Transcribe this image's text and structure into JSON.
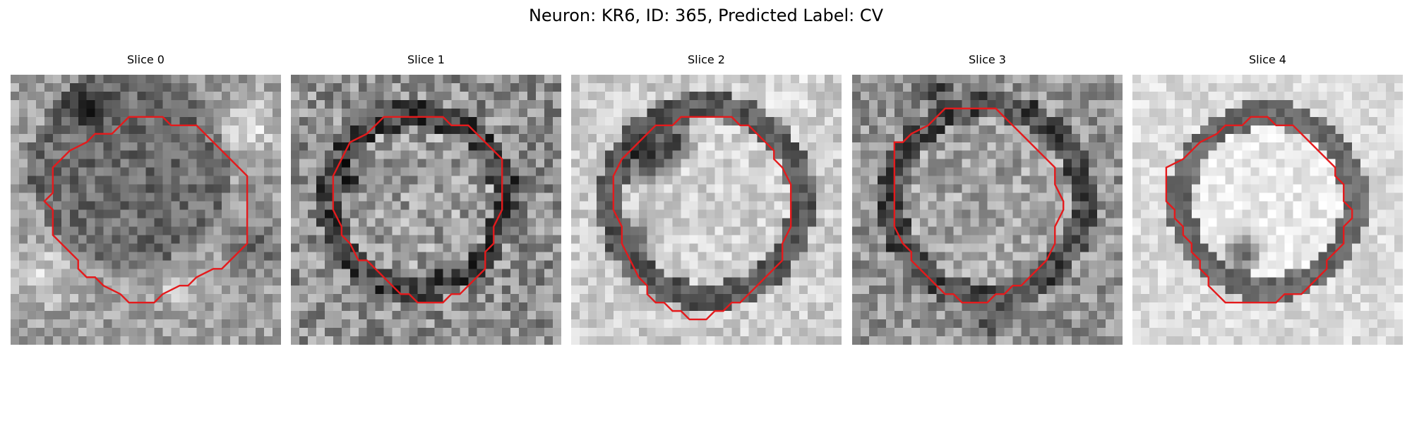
{
  "figure": {
    "title": "Neuron: KR6, ID: 365, Predicted Label: CV"
  },
  "panels": [
    {
      "title": "Slice 0"
    },
    {
      "title": "Slice 1"
    },
    {
      "title": "Slice 2"
    },
    {
      "title": "Slice 3"
    },
    {
      "title": "Slice 4"
    }
  ],
  "colors": {
    "contour": "#e41a1c",
    "background": "#ffffff"
  }
}
